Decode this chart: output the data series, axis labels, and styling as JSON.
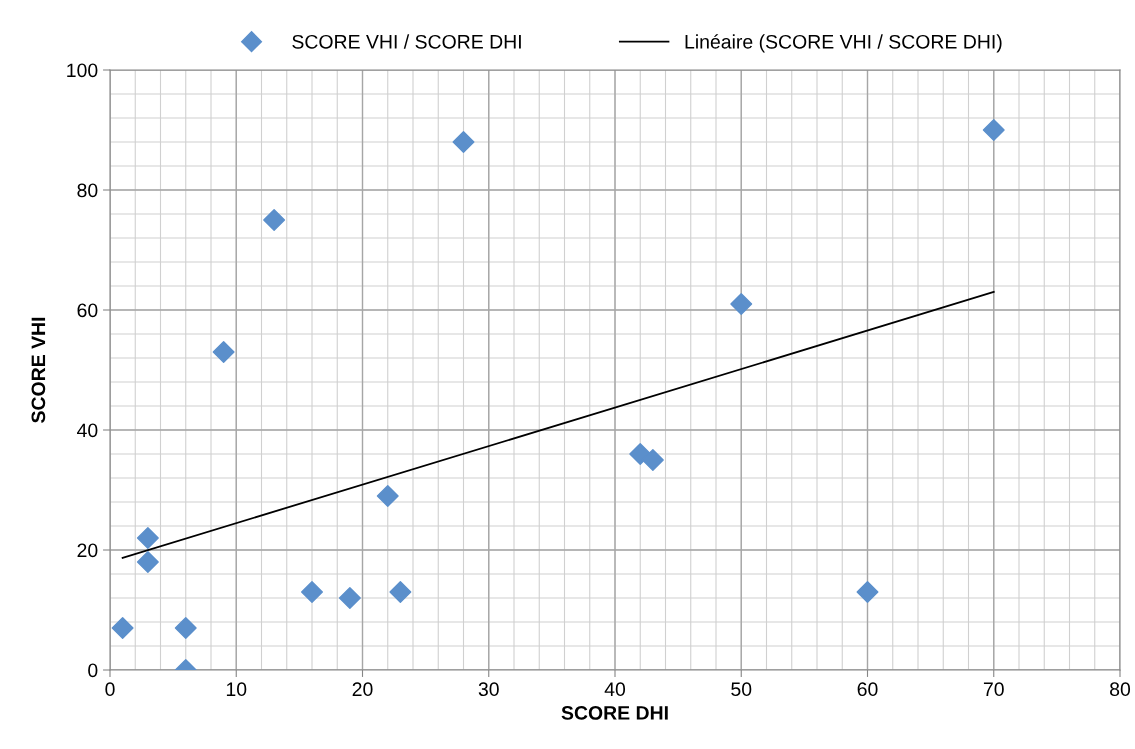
{
  "chart_data": {
    "type": "scatter",
    "xlabel": "SCORE DHI",
    "ylabel": "SCORE VHI",
    "series": [
      {
        "name": "SCORE VHI / SCORE DHI",
        "color": "#5b8fcb",
        "marker": "diamond",
        "x": [
          1,
          3,
          3,
          6,
          6,
          9,
          13,
          16,
          19,
          22,
          23,
          28,
          42,
          43,
          50,
          60,
          70
        ],
        "values": [
          7,
          22,
          18,
          7,
          0,
          53,
          75,
          13,
          12,
          29,
          13,
          88,
          36,
          35,
          61,
          13,
          90
        ]
      },
      {
        "name": "Linéaire (SCORE VHI / SCORE DHI)",
        "type": "line",
        "color": "#000000",
        "marker": "none",
        "line_style": "solid",
        "x": [
          1,
          70
        ],
        "values": [
          18.7,
          63
        ]
      }
    ],
    "xlim": [
      0,
      80
    ],
    "xticks": [
      0,
      10,
      20,
      30,
      40,
      50,
      60,
      70,
      80
    ],
    "ylim": [
      0,
      100
    ],
    "yticks": [
      0,
      20,
      40,
      60,
      80,
      100
    ],
    "grid": true,
    "legend": "top"
  }
}
